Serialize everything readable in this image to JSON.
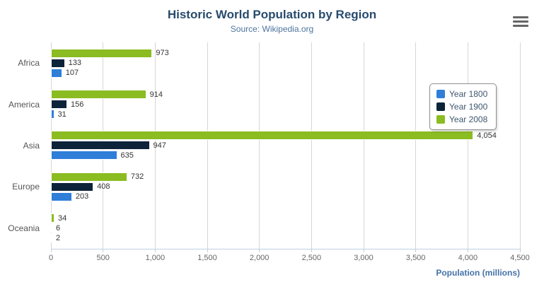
{
  "chart": {
    "title": "Historic World Population by Region",
    "subtitle": "Source: Wikipedia.org",
    "x_axis_title": "Population (millions)"
  },
  "chart_data": {
    "type": "bar",
    "orientation": "horizontal",
    "title": "Historic World Population by Region",
    "subtitle": "Source: Wikipedia.org",
    "categories": [
      "Africa",
      "America",
      "Asia",
      "Europe",
      "Oceania"
    ],
    "series": [
      {
        "name": "Year 1800",
        "color": "#2f7ed8",
        "values": [
          107,
          31,
          635,
          203,
          2
        ],
        "labels": [
          "107",
          "31",
          "635",
          "203",
          "2"
        ]
      },
      {
        "name": "Year 1900",
        "color": "#0d233a",
        "values": [
          133,
          156,
          947,
          408,
          6
        ],
        "labels": [
          "133",
          "156",
          "947",
          "408",
          "6"
        ]
      },
      {
        "name": "Year 2008",
        "color": "#8bbc21",
        "values": [
          973,
          914,
          4054,
          732,
          34
        ],
        "labels": [
          "973",
          "914",
          "4,054",
          "732",
          "34"
        ]
      }
    ],
    "row_order_top_to_bottom": [
      "Year 2008",
      "Year 1900",
      "Year 1800"
    ],
    "xlabel": "Population (millions)",
    "ylabel": "",
    "xlim": [
      0,
      4500
    ],
    "x_ticks": [
      {
        "value": 0,
        "label": "0"
      },
      {
        "value": 500,
        "label": "500"
      },
      {
        "value": 1000,
        "label": "1,000"
      },
      {
        "value": 1500,
        "label": "1,500"
      },
      {
        "value": 2000,
        "label": "2,000"
      },
      {
        "value": 2500,
        "label": "2,500"
      },
      {
        "value": 3000,
        "label": "3,000"
      },
      {
        "value": 3500,
        "label": "3,500"
      },
      {
        "value": 4000,
        "label": "4,000"
      },
      {
        "value": 4500,
        "label": "4,500"
      }
    ],
    "grid": true,
    "legend_position": "right"
  }
}
